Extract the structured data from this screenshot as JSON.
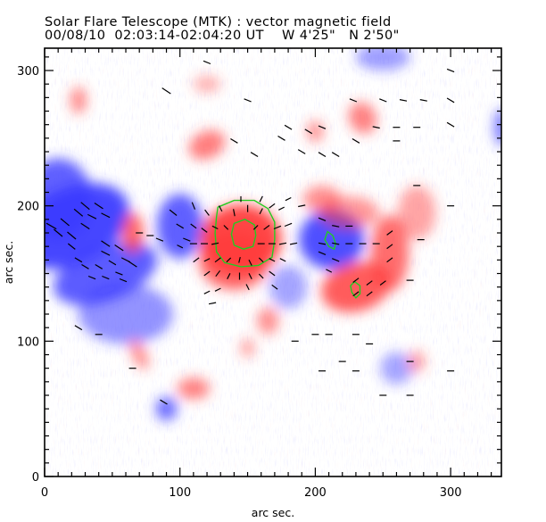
{
  "header": {
    "title": "Solar Flare Telescope (MTK) : vector magnetic field",
    "subtitle_date": "00/08/10",
    "subtitle_time": "02:03:14-02:04:20 UT",
    "subtitle_pos_w": "W 4'25\"",
    "subtitle_pos_n": "N 2'50\""
  },
  "colors": {
    "positive": "#ff3b3b",
    "negative": "#3c3cff",
    "contour": "#22cc22",
    "vector": "#000000",
    "background": "#ffffff"
  },
  "chart_data": {
    "type": "heatmap",
    "title": "Solar Flare Telescope (MTK) : vector magnetic field",
    "xlabel": "arc sec.",
    "ylabel": "arc sec.",
    "xlim": [
      0,
      337.5
    ],
    "ylim": [
      0,
      316.5
    ],
    "xticks": [
      0,
      100,
      200,
      300
    ],
    "yticks": [
      0,
      100,
      200,
      300
    ],
    "xtick_labels": [
      "0",
      "100",
      "200",
      "300"
    ],
    "ytick_labels": [
      "0",
      "100",
      "200",
      "300"
    ],
    "x_minor_step": 10,
    "y_minor_step": 10,
    "grid": false,
    "field_patches": [
      {
        "polarity": "negative",
        "cx": 20,
        "cy": 185,
        "rx": 45,
        "ry": 28,
        "rot": -25,
        "strength": 1.0
      },
      {
        "polarity": "negative",
        "cx": 45,
        "cy": 150,
        "rx": 40,
        "ry": 20,
        "rot": -20,
        "strength": 0.85
      },
      {
        "polarity": "negative",
        "cx": 10,
        "cy": 205,
        "rx": 25,
        "ry": 30,
        "rot": 0,
        "strength": 0.8
      },
      {
        "polarity": "negative",
        "cx": 60,
        "cy": 120,
        "rx": 35,
        "ry": 22,
        "rot": 0,
        "strength": 0.45
      },
      {
        "polarity": "negative",
        "cx": 100,
        "cy": 185,
        "rx": 17,
        "ry": 24,
        "rot": 0,
        "strength": 0.8
      },
      {
        "polarity": "negative",
        "cx": 212,
        "cy": 175,
        "rx": 24,
        "ry": 22,
        "rot": 0,
        "strength": 0.95
      },
      {
        "polarity": "negative",
        "cx": 90,
        "cy": 50,
        "rx": 8,
        "ry": 9,
        "rot": 0,
        "strength": 0.7
      },
      {
        "polarity": "negative",
        "cx": 180,
        "cy": 140,
        "rx": 14,
        "ry": 16,
        "rot": 0,
        "strength": 0.3
      },
      {
        "polarity": "negative",
        "cx": 250,
        "cy": 310,
        "rx": 20,
        "ry": 10,
        "rot": 0,
        "strength": 0.35
      },
      {
        "polarity": "negative",
        "cx": 338,
        "cy": 258,
        "rx": 6,
        "ry": 14,
        "rot": 0,
        "strength": 0.6
      },
      {
        "polarity": "negative",
        "cx": 260,
        "cy": 80,
        "rx": 12,
        "ry": 12,
        "rot": 0,
        "strength": 0.3
      },
      {
        "polarity": "positive",
        "cx": 145,
        "cy": 175,
        "rx": 30,
        "ry": 26,
        "rot": 0,
        "strength": 1.0
      },
      {
        "polarity": "positive",
        "cx": 140,
        "cy": 160,
        "rx": 26,
        "ry": 22,
        "rot": 0,
        "strength": 0.75
      },
      {
        "polarity": "positive",
        "cx": 65,
        "cy": 180,
        "rx": 8,
        "ry": 15,
        "rot": 0,
        "strength": 0.75
      },
      {
        "polarity": "positive",
        "cx": 230,
        "cy": 140,
        "rx": 26,
        "ry": 18,
        "rot": -15,
        "strength": 0.85
      },
      {
        "polarity": "positive",
        "cx": 255,
        "cy": 165,
        "rx": 14,
        "ry": 28,
        "rot": 0,
        "strength": 0.7
      },
      {
        "polarity": "positive",
        "cx": 120,
        "cy": 245,
        "rx": 14,
        "ry": 10,
        "rot": -25,
        "strength": 0.6
      },
      {
        "polarity": "positive",
        "cx": 225,
        "cy": 195,
        "rx": 22,
        "ry": 12,
        "rot": 0,
        "strength": 0.4
      },
      {
        "polarity": "positive",
        "cx": 205,
        "cy": 205,
        "rx": 14,
        "ry": 10,
        "rot": 0,
        "strength": 0.45
      },
      {
        "polarity": "positive",
        "cx": 235,
        "cy": 265,
        "rx": 10,
        "ry": 12,
        "rot": -25,
        "strength": 0.55
      },
      {
        "polarity": "positive",
        "cx": 200,
        "cy": 255,
        "rx": 6,
        "ry": 8,
        "rot": 0,
        "strength": 0.45
      },
      {
        "polarity": "positive",
        "cx": 25,
        "cy": 278,
        "rx": 6,
        "ry": 10,
        "rot": 0,
        "strength": 0.5
      },
      {
        "polarity": "positive",
        "cx": 165,
        "cy": 115,
        "rx": 8,
        "ry": 10,
        "rot": 0,
        "strength": 0.45
      },
      {
        "polarity": "positive",
        "cx": 70,
        "cy": 90,
        "rx": 5,
        "ry": 12,
        "rot": -25,
        "strength": 0.5
      },
      {
        "polarity": "positive",
        "cx": 110,
        "cy": 65,
        "rx": 12,
        "ry": 8,
        "rot": 0,
        "strength": 0.55
      },
      {
        "polarity": "positive",
        "cx": 150,
        "cy": 95,
        "rx": 5,
        "ry": 7,
        "rot": 0,
        "strength": 0.35
      },
      {
        "polarity": "positive",
        "cx": 275,
        "cy": 195,
        "rx": 14,
        "ry": 20,
        "rot": 0,
        "strength": 0.3
      },
      {
        "polarity": "positive",
        "cx": 275,
        "cy": 85,
        "rx": 6,
        "ry": 8,
        "rot": 0,
        "strength": 0.35
      },
      {
        "polarity": "positive",
        "cx": 120,
        "cy": 290,
        "rx": 10,
        "ry": 6,
        "rot": 0,
        "strength": 0.25
      }
    ],
    "contours": [
      {
        "level": "outer",
        "points": [
          [
            128,
            199
          ],
          [
            140,
            204
          ],
          [
            155,
            204
          ],
          [
            165,
            198
          ],
          [
            170,
            188
          ],
          [
            170,
            175
          ],
          [
            168,
            162
          ],
          [
            158,
            156
          ],
          [
            145,
            155
          ],
          [
            133,
            158
          ],
          [
            127,
            166
          ],
          [
            126,
            180
          ],
          [
            127,
            192
          ]
        ]
      },
      {
        "level": "inner",
        "points": [
          [
            140,
            187
          ],
          [
            148,
            190
          ],
          [
            155,
            186
          ],
          [
            156,
            178
          ],
          [
            154,
            170
          ],
          [
            147,
            168
          ],
          [
            140,
            171
          ],
          [
            138,
            179
          ]
        ]
      },
      {
        "level": "neg-spot",
        "points": [
          [
            209,
            181
          ],
          [
            213,
            178
          ],
          [
            215,
            172
          ],
          [
            214,
            168
          ],
          [
            210,
            170
          ],
          [
            207,
            175
          ]
        ]
      },
      {
        "level": "pos-spot",
        "points": [
          [
            229,
            144
          ],
          [
            233,
            141
          ],
          [
            233,
            135
          ],
          [
            230,
            132
          ],
          [
            227,
            136
          ],
          [
            226,
            141
          ]
        ]
      }
    ],
    "vectors": [
      [
        10,
        180,
        6,
        -5
      ],
      [
        20,
        178,
        6,
        -5
      ],
      [
        30,
        185,
        6,
        -4
      ],
      [
        35,
        192,
        6,
        -3
      ],
      [
        45,
        193,
        6,
        -3
      ],
      [
        25,
        195,
        6,
        -5
      ],
      [
        30,
        200,
        6,
        -5
      ],
      [
        40,
        200,
        6,
        -4
      ],
      [
        5,
        185,
        7,
        -4
      ],
      [
        15,
        188,
        6,
        -5
      ],
      [
        45,
        172,
        6,
        -4
      ],
      [
        55,
        169,
        6,
        -4
      ],
      [
        60,
        160,
        6,
        -3
      ],
      [
        65,
        157,
        6,
        -4
      ],
      [
        45,
        165,
        6,
        -3
      ],
      [
        30,
        155,
        5,
        -3
      ],
      [
        40,
        155,
        5,
        -3
      ],
      [
        50,
        158,
        5,
        -3
      ],
      [
        35,
        147,
        5,
        -2
      ],
      [
        45,
        147,
        5,
        -2
      ],
      [
        55,
        150,
        5,
        -2
      ],
      [
        25,
        160,
        5,
        -3
      ],
      [
        20,
        170,
        5,
        -4
      ],
      [
        58,
        145,
        5,
        -2
      ],
      [
        95,
        195,
        5,
        -4
      ],
      [
        100,
        185,
        5,
        -3
      ],
      [
        105,
        175,
        5,
        -2
      ],
      [
        100,
        170,
        4,
        -2
      ],
      [
        70,
        180,
        5,
        0
      ],
      [
        78,
        178,
        5,
        0
      ],
      [
        85,
        175,
        5,
        -2
      ],
      [
        110,
        200,
        -2,
        5
      ],
      [
        120,
        195,
        -3,
        4
      ],
      [
        130,
        198,
        -2,
        4
      ],
      [
        140,
        195,
        -1,
        5
      ],
      [
        150,
        198,
        0,
        5
      ],
      [
        160,
        196,
        2,
        4
      ],
      [
        168,
        200,
        4,
        3
      ],
      [
        175,
        198,
        4,
        2
      ],
      [
        110,
        185,
        -4,
        3
      ],
      [
        118,
        182,
        -4,
        3
      ],
      [
        126,
        184,
        -4,
        2
      ],
      [
        134,
        184,
        -3,
        3
      ],
      [
        156,
        184,
        3,
        3
      ],
      [
        164,
        184,
        4,
        3
      ],
      [
        172,
        184,
        5,
        2
      ],
      [
        180,
        186,
        5,
        2
      ],
      [
        110,
        172,
        -5,
        0
      ],
      [
        118,
        172,
        -5,
        0
      ],
      [
        126,
        172,
        -5,
        -1
      ],
      [
        160,
        172,
        5,
        0
      ],
      [
        168,
        172,
        5,
        0
      ],
      [
        176,
        172,
        5,
        1
      ],
      [
        184,
        172,
        5,
        1
      ],
      [
        112,
        160,
        -4,
        -3
      ],
      [
        120,
        160,
        -4,
        -2
      ],
      [
        128,
        160,
        -4,
        -3
      ],
      [
        136,
        160,
        -3,
        -3
      ],
      [
        144,
        160,
        -1,
        -4
      ],
      [
        152,
        158,
        2,
        -4
      ],
      [
        160,
        160,
        3,
        -3
      ],
      [
        168,
        160,
        4,
        -2
      ],
      [
        176,
        160,
        4,
        -2
      ],
      [
        120,
        150,
        -4,
        -3
      ],
      [
        128,
        150,
        -3,
        -4
      ],
      [
        136,
        148,
        -2,
        -4
      ],
      [
        144,
        148,
        0,
        -5
      ],
      [
        152,
        148,
        2,
        -4
      ],
      [
        160,
        148,
        3,
        -3
      ],
      [
        168,
        150,
        4,
        -3
      ],
      [
        120,
        136,
        -4,
        -2
      ],
      [
        128,
        138,
        -4,
        -2
      ],
      [
        124,
        128,
        -5,
        -1
      ],
      [
        150,
        140,
        2,
        -4
      ],
      [
        170,
        140,
        4,
        -3
      ],
      [
        190,
        200,
        5,
        1
      ],
      [
        180,
        205,
        4,
        2
      ],
      [
        145,
        205,
        0,
        4
      ],
      [
        160,
        205,
        2,
        4
      ],
      [
        205,
        190,
        5,
        -2
      ],
      [
        215,
        185,
        5,
        -1
      ],
      [
        225,
        185,
        5,
        0
      ],
      [
        205,
        172,
        5,
        -1
      ],
      [
        215,
        172,
        5,
        -1
      ],
      [
        225,
        172,
        5,
        0
      ],
      [
        235,
        172,
        5,
        0
      ],
      [
        245,
        172,
        5,
        0
      ],
      [
        205,
        165,
        5,
        -2
      ],
      [
        215,
        160,
        5,
        -2
      ],
      [
        210,
        152,
        4,
        -2
      ],
      [
        230,
        145,
        4,
        3
      ],
      [
        240,
        143,
        4,
        3
      ],
      [
        250,
        143,
        4,
        3
      ],
      [
        230,
        135,
        4,
        3
      ],
      [
        240,
        135,
        4,
        3
      ],
      [
        255,
        180,
        4,
        3
      ],
      [
        255,
        170,
        4,
        3
      ],
      [
        255,
        160,
        4,
        3
      ],
      [
        270,
        145,
        5,
        0
      ],
      [
        278,
        175,
        5,
        0
      ],
      [
        275,
        215,
        5,
        0
      ],
      [
        300,
        200,
        0,
        0
      ],
      [
        90,
        285,
        6,
        -4
      ],
      [
        175,
        250,
        5,
        -3
      ],
      [
        195,
        255,
        5,
        -3
      ],
      [
        155,
        238,
        5,
        -3
      ],
      [
        205,
        238,
        5,
        -3
      ],
      [
        215,
        238,
        5,
        -3
      ],
      [
        120,
        306,
        5,
        -2
      ],
      [
        205,
        258,
        5,
        -2
      ],
      [
        245,
        258,
        5,
        -1
      ],
      [
        260,
        258,
        5,
        0
      ],
      [
        275,
        258,
        5,
        0
      ],
      [
        260,
        248,
        5,
        0
      ],
      [
        300,
        260,
        5,
        -3
      ],
      [
        300,
        278,
        5,
        -3
      ],
      [
        250,
        278,
        5,
        -2
      ],
      [
        228,
        278,
        5,
        -2
      ],
      [
        265,
        278,
        5,
        -1
      ],
      [
        280,
        278,
        5,
        -1
      ],
      [
        300,
        300,
        5,
        -2
      ],
      [
        230,
        248,
        5,
        -3
      ],
      [
        150,
        278,
        5,
        -2
      ],
      [
        180,
        258,
        5,
        -3
      ],
      [
        140,
        248,
        5,
        -3
      ],
      [
        190,
        240,
        5,
        -3
      ],
      [
        25,
        110,
        5,
        -3
      ],
      [
        40,
        105,
        5,
        0
      ],
      [
        65,
        80,
        5,
        0
      ],
      [
        88,
        55,
        5,
        -3
      ],
      [
        210,
        105,
        5,
        0
      ],
      [
        230,
        105,
        5,
        0
      ],
      [
        220,
        85,
        5,
        0
      ],
      [
        270,
        85,
        5,
        0
      ],
      [
        185,
        100,
        5,
        0
      ],
      [
        200,
        105,
        5,
        0
      ],
      [
        205,
        78,
        5,
        0
      ],
      [
        230,
        78,
        5,
        0
      ],
      [
        300,
        78,
        5,
        0
      ],
      [
        240,
        98,
        5,
        0
      ],
      [
        270,
        60,
        5,
        0
      ],
      [
        250,
        60,
        5,
        0
      ]
    ]
  }
}
